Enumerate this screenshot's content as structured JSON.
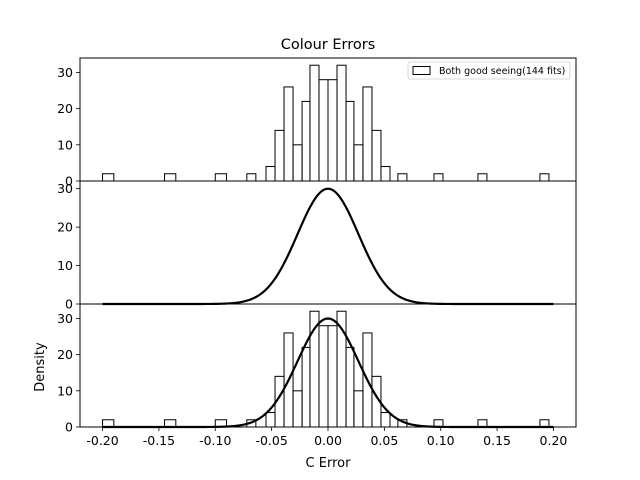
{
  "figure": {
    "title": "Colour Errors",
    "xlabel": "C Error",
    "ylabel": "Density"
  },
  "chart_data": [
    {
      "type": "histogram",
      "panel": "top",
      "legend": {
        "label": "Both good seeing(144 fits)",
        "placement": "top-right"
      },
      "xlim": [
        -0.22,
        0.22
      ],
      "ylim": [
        0,
        34
      ],
      "yticks": [
        0,
        10,
        20,
        30
      ],
      "bin_edges": [
        -0.2,
        -0.19,
        -0.145,
        -0.135,
        -0.1,
        -0.09,
        -0.072,
        -0.064,
        -0.055,
        -0.047,
        -0.039,
        -0.031,
        -0.023,
        -0.016,
        -0.008,
        0.0,
        0.008,
        0.016,
        0.023,
        0.031,
        0.039,
        0.047,
        0.055,
        0.062,
        0.07,
        0.094,
        0.102,
        0.133,
        0.141,
        0.188,
        0.196
      ],
      "counts": [
        2,
        0,
        2,
        0,
        2,
        0,
        2,
        0,
        4,
        14,
        26,
        10,
        22,
        32,
        28,
        28,
        32,
        22,
        10,
        26,
        14,
        4,
        0,
        2,
        0,
        2,
        0,
        2,
        0,
        2
      ]
    },
    {
      "type": "line",
      "panel": "middle",
      "xlim": [
        -0.22,
        0.22
      ],
      "ylim": [
        0,
        32
      ],
      "yticks": [
        0,
        10,
        20,
        30
      ],
      "curve": {
        "kind": "gaussian",
        "peak": 30,
        "mean": 0.0,
        "sigma": 0.027,
        "x_range": [
          -0.2,
          0.2
        ]
      }
    },
    {
      "type": "histogram+line",
      "panel": "bottom",
      "xlim": [
        -0.22,
        0.22
      ],
      "ylim": [
        0,
        34
      ],
      "yticks": [
        0,
        10,
        20,
        30
      ],
      "xticks": [
        "-0.20",
        "-0.15",
        "-0.10",
        "-0.05",
        "0.00",
        "0.05",
        "0.10",
        "0.15",
        "0.20"
      ],
      "xtick_values": [
        -0.2,
        -0.15,
        -0.1,
        -0.05,
        0.0,
        0.05,
        0.1,
        0.15,
        0.2
      ],
      "bin_edges": [
        -0.2,
        -0.19,
        -0.145,
        -0.135,
        -0.1,
        -0.09,
        -0.072,
        -0.064,
        -0.055,
        -0.047,
        -0.039,
        -0.031,
        -0.023,
        -0.016,
        -0.008,
        0.0,
        0.008,
        0.016,
        0.023,
        0.031,
        0.039,
        0.047,
        0.055,
        0.062,
        0.07,
        0.094,
        0.102,
        0.133,
        0.141,
        0.188,
        0.196
      ],
      "counts": [
        2,
        0,
        2,
        0,
        2,
        0,
        2,
        0,
        4,
        14,
        26,
        10,
        22,
        32,
        28,
        28,
        32,
        22,
        10,
        26,
        14,
        4,
        0,
        2,
        0,
        2,
        0,
        2,
        0,
        2
      ],
      "curve": {
        "kind": "gaussian",
        "peak": 30,
        "mean": 0.0,
        "sigma": 0.027,
        "x_range": [
          -0.2,
          0.2
        ]
      }
    }
  ]
}
